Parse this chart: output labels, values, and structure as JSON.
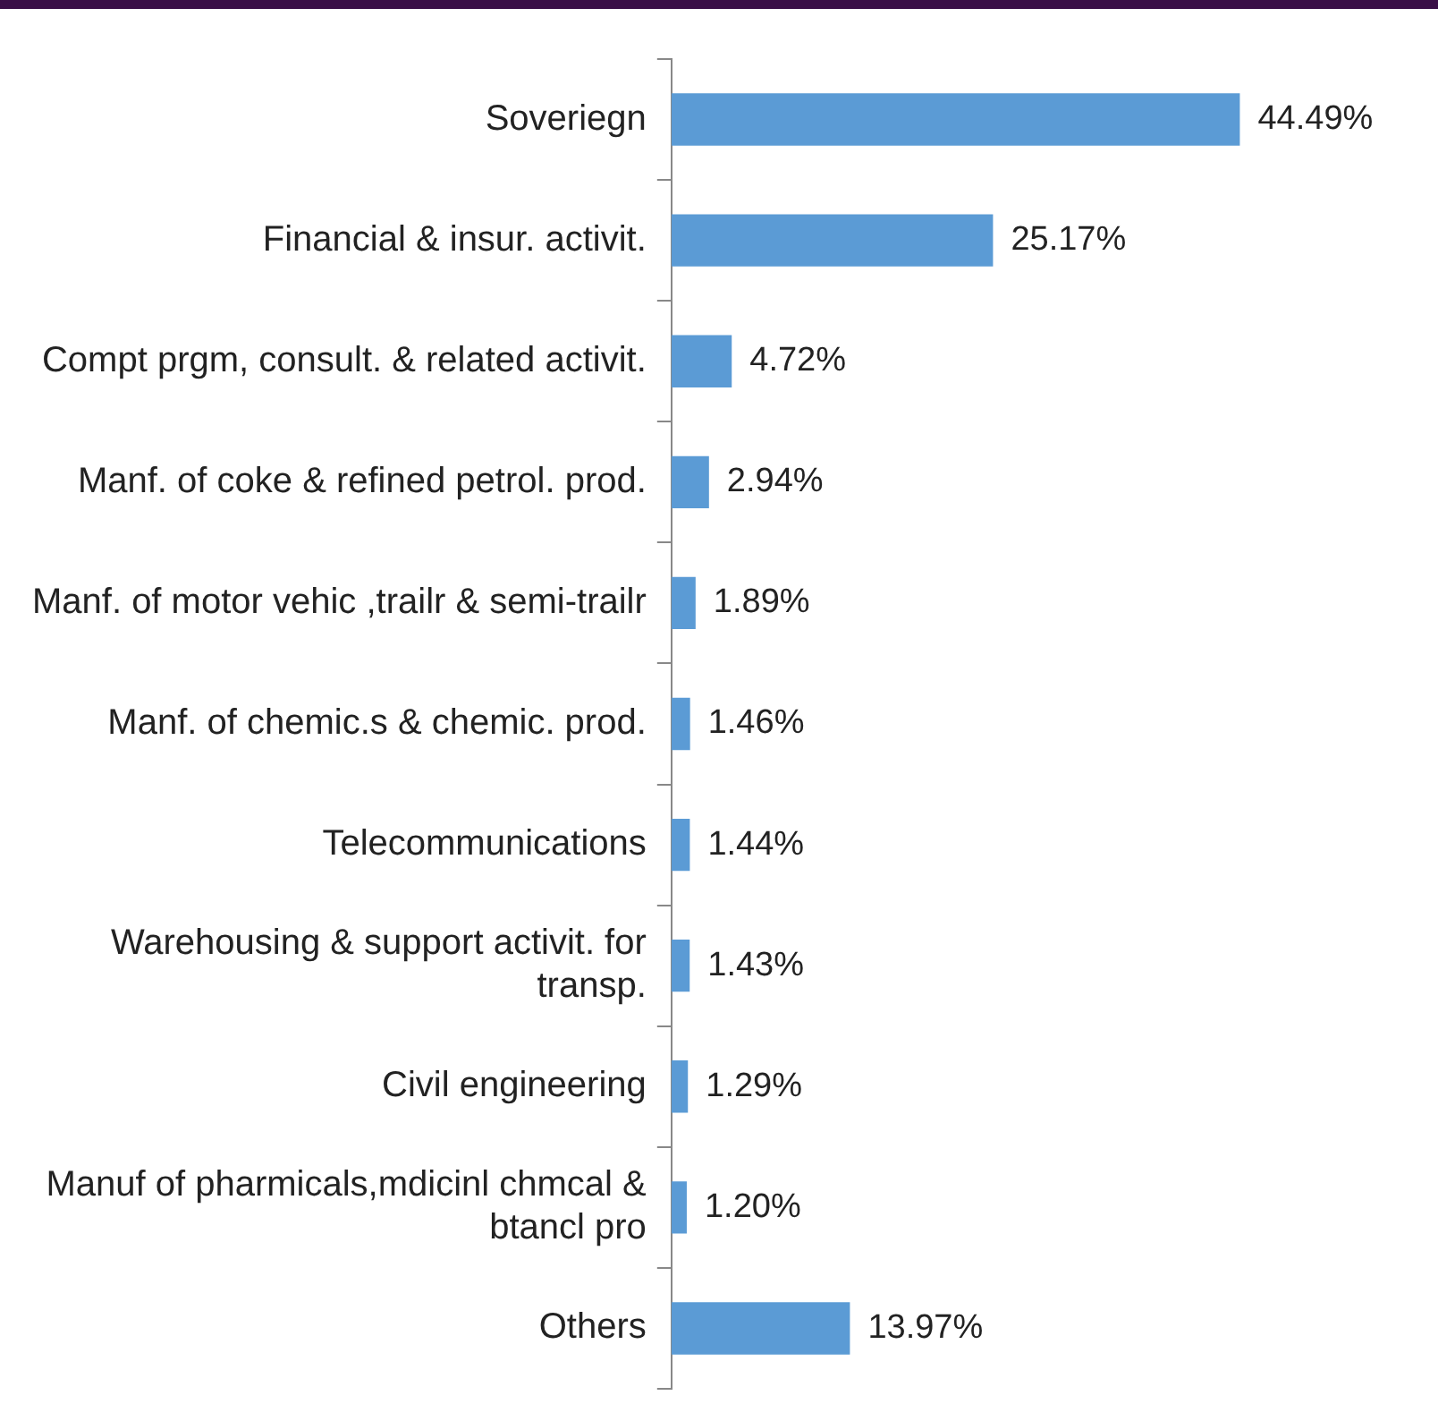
{
  "chart_data": {
    "type": "bar",
    "orientation": "horizontal",
    "color": "#5b9bd5",
    "categories": [
      "Soveriegn",
      "Financial & insur. activit.",
      "Compt prgm, consult. & related activit.",
      "Manf. of coke & refined petrol. prod.",
      "Manf. of motor vehic ,trailr & semi-trailr",
      "Manf. of chemic.s & chemic. prod.",
      "Telecommunications",
      "Warehousing & support activit. for transp.",
      "Civil engineering",
      "Manuf of pharmicals,mdicinl chmcal & btancl pro",
      "Others"
    ],
    "values": [
      44.49,
      25.17,
      4.72,
      2.94,
      1.89,
      1.46,
      1.44,
      1.43,
      1.29,
      1.2,
      13.97
    ],
    "value_labels": [
      "44.49%",
      "25.17%",
      "4.72%",
      "2.94%",
      "1.89%",
      "1.46%",
      "1.44%",
      "1.43%",
      "1.29%",
      "1.20%",
      "13.97%"
    ],
    "legend": false
  }
}
